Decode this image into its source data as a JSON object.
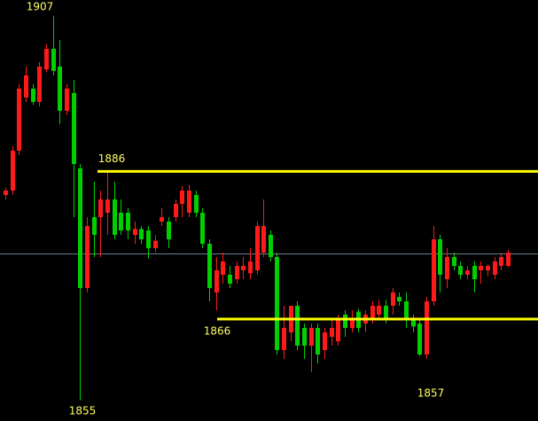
{
  "chart_data": {
    "type": "candlestick",
    "up_color": "#ff1a1a",
    "down_color": "#00d000",
    "level_color": "#ffff00",
    "ylim": [
      1852.2,
      1909.2
    ],
    "peak": 1907,
    "trough": 1855,
    "resistance": 1886,
    "support": 1866,
    "recent_low": 1857,
    "open": [
      1882.8,
      1883.4,
      1888.8,
      1896.0,
      1897.2,
      1895.4,
      1899.8,
      1902.6,
      1900.2,
      1894.2,
      1896.6,
      1886.4,
      1870.2,
      1879.8,
      1879.8,
      1880.4,
      1882.2,
      1880.4,
      1880.4,
      1877.4,
      1878.2,
      1878.0,
      1875.6,
      1879.2,
      1879.2,
      1879.8,
      1881.6,
      1880.4,
      1882.8,
      1880.4,
      1876.2,
      1869.6,
      1872.0,
      1872.0,
      1871.4,
      1872.6,
      1872.2,
      1872.6,
      1875.0,
      1877.4,
      1874.4,
      1861.8,
      1864.2,
      1867.8,
      1864.8,
      1862.4,
      1864.8,
      1861.8,
      1863.6,
      1863.0,
      1866.6,
      1864.8,
      1867.0,
      1865.4,
      1866.0,
      1866.6,
      1867.8,
      1867.8,
      1869.0,
      1868.4,
      1866.0,
      1865.4,
      1861.2,
      1868.4,
      1876.8,
      1871.4,
      1874.4,
      1873.2,
      1872.0,
      1873.2,
      1872.6,
      1872.6,
      1872.0,
      1873.2,
      1873.2
    ],
    "high": [
      1883.8,
      1889.4,
      1897.8,
      1900.2,
      1897.8,
      1900.8,
      1903.2,
      1907.0,
      1903.8,
      1897.8,
      1898.4,
      1887.0,
      1879.8,
      1884.6,
      1883.4,
      1885.8,
      1884.6,
      1882.2,
      1881.0,
      1879.2,
      1878.6,
      1878.6,
      1877.4,
      1881.0,
      1879.8,
      1882.2,
      1884.0,
      1884.2,
      1883.4,
      1881.0,
      1876.8,
      1874.4,
      1875.0,
      1873.2,
      1873.8,
      1874.4,
      1875.6,
      1879.2,
      1882.2,
      1878.0,
      1875.0,
      1867.8,
      1867.8,
      1868.4,
      1865.4,
      1865.4,
      1865.4,
      1864.8,
      1866.0,
      1866.6,
      1867.2,
      1867.2,
      1867.4,
      1867.2,
      1868.4,
      1868.6,
      1868.6,
      1870.2,
      1869.6,
      1869.6,
      1866.6,
      1866.0,
      1869.0,
      1878.6,
      1877.4,
      1875.6,
      1875.0,
      1873.8,
      1873.2,
      1873.8,
      1873.8,
      1873.4,
      1874.4,
      1875.0,
      1875.4
    ],
    "low": [
      1882.2,
      1882.8,
      1888.2,
      1895.4,
      1895.0,
      1894.8,
      1899.4,
      1899.0,
      1892.4,
      1893.6,
      1879.8,
      1855.0,
      1869.6,
      1874.4,
      1874.4,
      1877.4,
      1876.8,
      1877.4,
      1876.8,
      1876.2,
      1876.2,
      1874.2,
      1875.0,
      1878.6,
      1875.6,
      1879.2,
      1879.8,
      1879.8,
      1879.8,
      1875.6,
      1868.4,
      1867.2,
      1870.8,
      1870.2,
      1870.8,
      1871.4,
      1871.4,
      1872.0,
      1874.4,
      1873.8,
      1861.2,
      1860.6,
      1863.0,
      1861.8,
      1860.6,
      1858.8,
      1860.0,
      1860.6,
      1862.4,
      1862.4,
      1863.6,
      1864.2,
      1864.2,
      1864.2,
      1865.4,
      1866.0,
      1865.4,
      1866.6,
      1867.8,
      1864.8,
      1864.2,
      1861.0,
      1860.6,
      1867.8,
      1869.6,
      1870.2,
      1872.6,
      1871.4,
      1871.4,
      1869.6,
      1870.8,
      1871.8,
      1871.4,
      1872.6,
      1873.0
    ],
    "close": [
      1883.4,
      1888.8,
      1897.2,
      1899.0,
      1895.4,
      1900.2,
      1902.6,
      1899.6,
      1894.2,
      1897.2,
      1887.0,
      1870.2,
      1878.6,
      1877.4,
      1882.2,
      1882.2,
      1877.4,
      1878.0,
      1878.0,
      1878.2,
      1876.8,
      1875.6,
      1876.6,
      1879.8,
      1876.8,
      1881.6,
      1883.4,
      1883.4,
      1880.4,
      1876.2,
      1870.2,
      1872.6,
      1873.8,
      1870.8,
      1873.2,
      1873.2,
      1873.8,
      1878.6,
      1878.6,
      1874.4,
      1861.8,
      1864.8,
      1867.8,
      1862.4,
      1862.4,
      1864.8,
      1861.2,
      1864.2,
      1864.8,
      1866.0,
      1864.8,
      1866.0,
      1864.8,
      1866.6,
      1867.8,
      1867.8,
      1866.0,
      1869.6,
      1868.4,
      1866.0,
      1865.0,
      1861.2,
      1868.4,
      1876.8,
      1872.0,
      1874.4,
      1873.2,
      1872.0,
      1872.6,
      1871.4,
      1873.2,
      1873.2,
      1873.8,
      1874.4,
      1875.0
    ]
  }
}
